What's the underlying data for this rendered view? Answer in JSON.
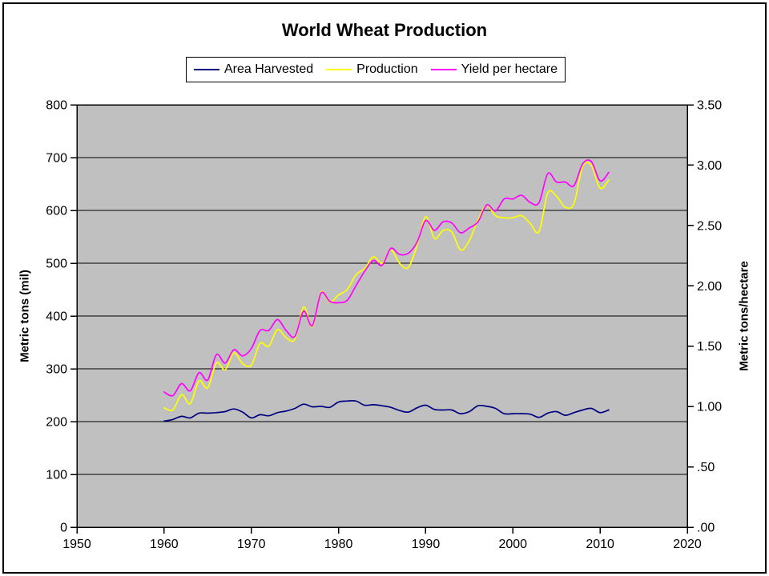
{
  "title": "World Wheat Production",
  "legend": {
    "items": [
      {
        "label": "Area Harvested",
        "color": "#000080"
      },
      {
        "label": "Production",
        "color": "#FFFF00"
      },
      {
        "label": "Yield per hectare",
        "color": "#FF00FF"
      }
    ]
  },
  "left_axis": {
    "title": "Metric tons (mil)",
    "ticks": [
      "800",
      "700",
      "600",
      "500",
      "400",
      "300",
      "200",
      "100",
      "0"
    ],
    "min": 0,
    "max": 800
  },
  "right_axis": {
    "title": "Metric tons/hectare",
    "ticks": [
      "3.50",
      "3.00",
      "2.50",
      "2.00",
      "1.50",
      "1.00",
      ".50",
      ".00"
    ],
    "min": 0,
    "max": 3.5
  },
  "x_axis": {
    "ticks": [
      "1950",
      "1960",
      "1970",
      "1980",
      "1990",
      "2000",
      "2010",
      "2020"
    ],
    "min": 1950,
    "max": 2020
  },
  "plot": {
    "background": "#C0C0C0",
    "grid_color": "#000000",
    "axis_color": "#000000"
  },
  "chart_data": {
    "type": "line",
    "title": "World Wheat Production",
    "xlabel": "",
    "left_ylabel": "Metric tons (mil)",
    "right_ylabel": "Metric tons/hectare",
    "xlim": [
      1950,
      2020
    ],
    "left_ylim": [
      0,
      800
    ],
    "right_ylim": [
      0,
      3.5
    ],
    "grid": "horizontal",
    "legend_position": "top",
    "plot_bg": "#C0C0C0",
    "x": [
      1960,
      1961,
      1962,
      1963,
      1964,
      1965,
      1966,
      1967,
      1968,
      1969,
      1970,
      1971,
      1972,
      1973,
      1974,
      1975,
      1976,
      1977,
      1978,
      1979,
      1980,
      1981,
      1982,
      1983,
      1984,
      1985,
      1986,
      1987,
      1988,
      1989,
      1990,
      1991,
      1992,
      1993,
      1994,
      1995,
      1996,
      1997,
      1998,
      1999,
      2000,
      2001,
      2002,
      2003,
      2004,
      2005,
      2006,
      2007,
      2008,
      2009,
      2010,
      2011
    ],
    "series": [
      {
        "name": "Area Harvested",
        "axis": "left",
        "color": "#000080",
        "values": [
          201,
          204,
          210,
          207,
          216,
          216,
          217,
          219,
          224,
          218,
          207,
          213,
          211,
          217,
          220,
          225,
          233,
          228,
          229,
          227,
          237,
          239,
          239,
          231,
          232,
          230,
          227,
          221,
          218,
          226,
          231,
          223,
          222,
          222,
          215,
          219,
          230,
          229,
          225,
          215,
          215,
          215,
          214,
          208,
          216,
          219,
          212,
          217,
          222,
          225,
          217,
          222
        ]
      },
      {
        "name": "Production",
        "axis": "left",
        "color": "#FFFF00",
        "values": [
          226,
          222,
          251,
          234,
          277,
          264,
          311,
          298,
          330,
          310,
          307,
          348,
          343,
          374,
          359,
          356,
          417,
          380,
          445,
          426,
          440,
          450,
          478,
          490,
          512,
          500,
          525,
          500,
          492,
          533,
          588,
          547,
          562,
          559,
          525,
          543,
          582,
          610,
          590,
          586,
          586,
          590,
          575,
          560,
          633,
          627,
          606,
          613,
          683,
          685,
          642,
          658
        ]
      },
      {
        "name": "Yield per hectare",
        "axis": "right",
        "color": "#FF00FF",
        "values": [
          1.12,
          1.09,
          1.19,
          1.13,
          1.28,
          1.22,
          1.43,
          1.36,
          1.47,
          1.42,
          1.48,
          1.63,
          1.63,
          1.72,
          1.63,
          1.58,
          1.79,
          1.67,
          1.94,
          1.87,
          1.86,
          1.88,
          2.0,
          2.12,
          2.21,
          2.17,
          2.31,
          2.26,
          2.27,
          2.36,
          2.54,
          2.46,
          2.53,
          2.52,
          2.44,
          2.48,
          2.53,
          2.67,
          2.62,
          2.72,
          2.72,
          2.75,
          2.69,
          2.69,
          2.93,
          2.86,
          2.86,
          2.83,
          3.01,
          3.03,
          2.87,
          2.94
        ]
      }
    ]
  }
}
